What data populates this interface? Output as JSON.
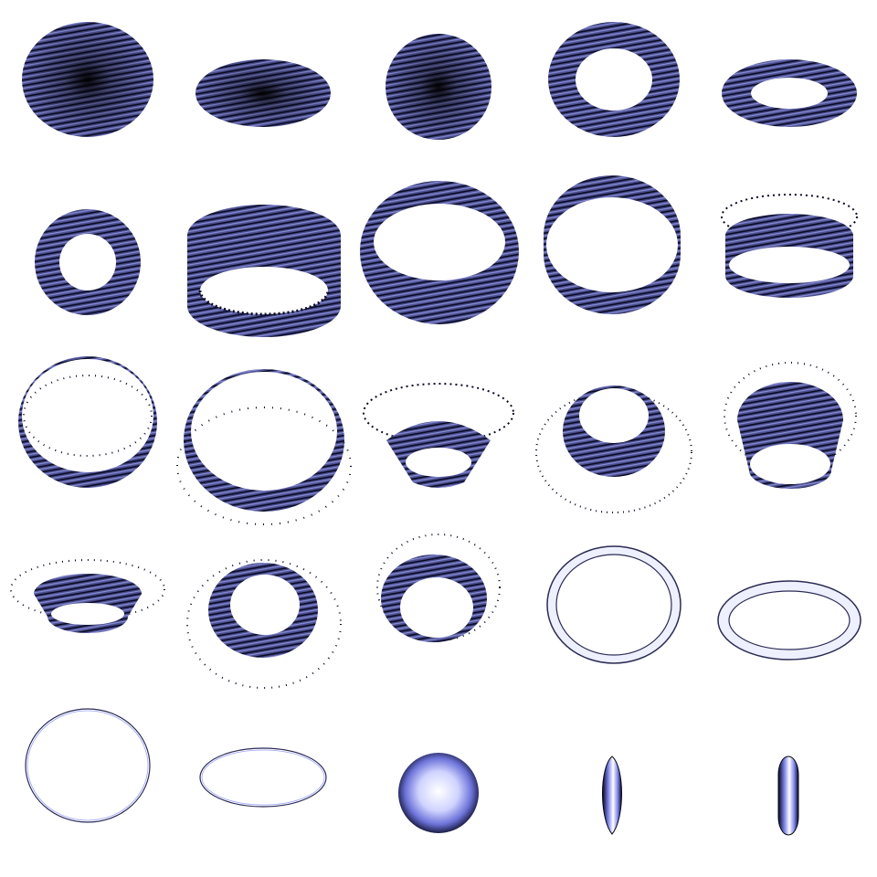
{
  "colors": {
    "background": "#ffffff",
    "fiber_dark": "#0a0a24",
    "fiber_mid": "#4a4e8e",
    "fiber_light": "#8a8ed4",
    "outline": "#2b2b55",
    "pale_fill": "#eef0ff",
    "sphere_center": "#ffffff",
    "sphere_mid": "#9aa2ff",
    "sphere_edge": "#05051a"
  },
  "grid": {
    "rows": 5,
    "columns": 5,
    "cells": [
      {
        "name": "textured-disc",
        "kind": "disc",
        "style": "textured"
      },
      {
        "name": "textured-flat-disc",
        "kind": "disc",
        "style": "textured"
      },
      {
        "name": "textured-disc-small",
        "kind": "disc",
        "style": "textured"
      },
      {
        "name": "textured-annulus",
        "kind": "annulus",
        "style": "textured"
      },
      {
        "name": "textured-flat-annulus",
        "kind": "annulus",
        "style": "textured"
      },
      {
        "name": "textured-annulus-small",
        "kind": "annulus",
        "style": "textured"
      },
      {
        "name": "textured-cylinder-band",
        "kind": "band",
        "style": "textured"
      },
      {
        "name": "textured-tapered-band",
        "kind": "band",
        "style": "textured"
      },
      {
        "name": "textured-wide-band",
        "kind": "band",
        "style": "textured"
      },
      {
        "name": "textured-band-with-dotted-rim",
        "kind": "band",
        "style": "textured",
        "dotted": true
      },
      {
        "name": "textured-thin-band",
        "kind": "band",
        "style": "textured",
        "dotted": true
      },
      {
        "name": "textured-ring-band",
        "kind": "band",
        "style": "textured",
        "dotted": true
      },
      {
        "name": "textured-cup",
        "kind": "cup",
        "style": "textured",
        "dotted": true
      },
      {
        "name": "textured-bowl",
        "kind": "cup",
        "style": "textured",
        "dotted": true
      },
      {
        "name": "textured-deep-bowl",
        "kind": "cup",
        "style": "textured",
        "dotted": true
      },
      {
        "name": "textured-shallow-cup",
        "kind": "cup",
        "style": "textured",
        "dotted": true
      },
      {
        "name": "textured-bowl-ring",
        "kind": "cup",
        "style": "textured",
        "dotted": true
      },
      {
        "name": "textured-deep-cup",
        "kind": "cup",
        "style": "textured",
        "dotted": true
      },
      {
        "name": "smooth-ring",
        "kind": "ring",
        "style": "smooth"
      },
      {
        "name": "smooth-flat-ring",
        "kind": "ring",
        "style": "smooth"
      },
      {
        "name": "thin-ellipse-outline",
        "kind": "outline",
        "style": "line"
      },
      {
        "name": "thin-flat-ellipse-outline",
        "kind": "outline",
        "style": "line"
      },
      {
        "name": "shaded-sphere",
        "kind": "sphere",
        "style": "shaded"
      },
      {
        "name": "shaded-spindle",
        "kind": "spindle",
        "style": "shaded"
      },
      {
        "name": "shaded-capsule",
        "kind": "capsule",
        "style": "shaded"
      }
    ]
  }
}
